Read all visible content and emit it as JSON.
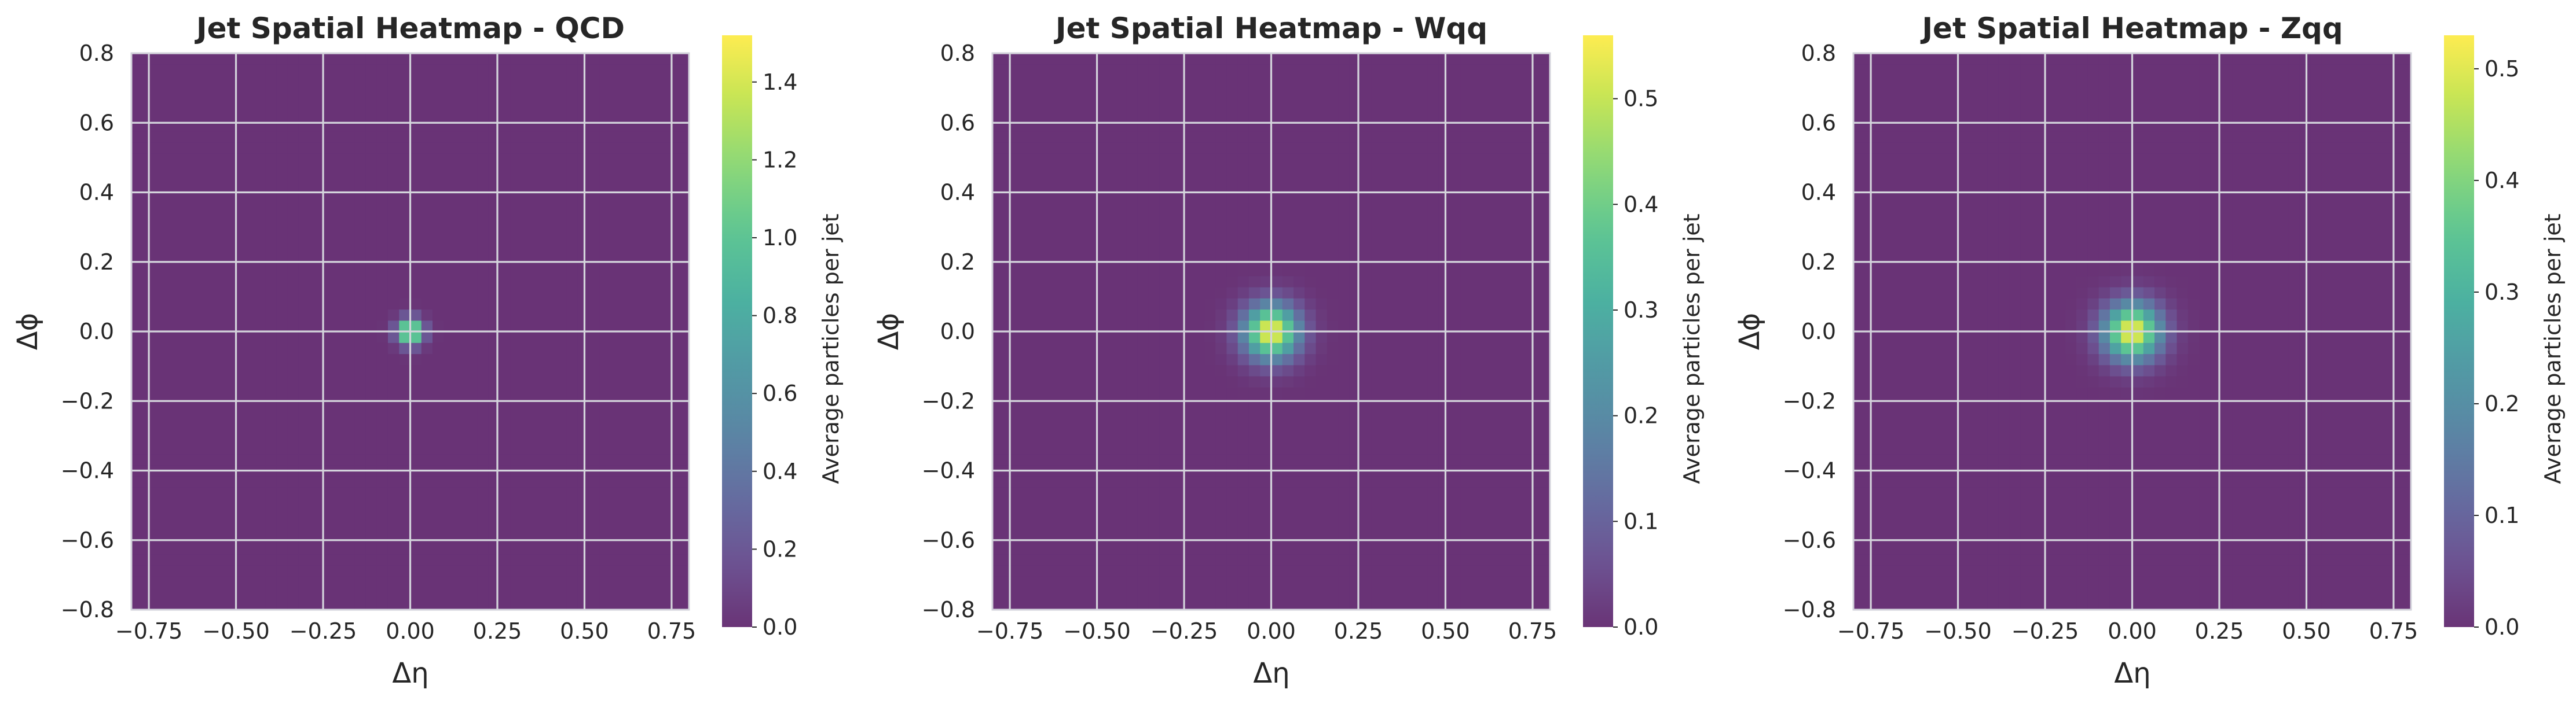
{
  "chart_data": [
    {
      "type": "heatmap",
      "title": "Jet Spatial Heatmap - QCD",
      "xlabel": "Δη",
      "ylabel": "Δϕ",
      "xlim": [
        -0.8,
        0.8
      ],
      "ylim": [
        -0.8,
        0.8
      ],
      "xticks": [
        -0.75,
        -0.5,
        -0.25,
        0.0,
        0.25,
        0.5,
        0.75
      ],
      "xtick_labels": [
        "−0.75",
        "−0.50",
        "−0.25",
        "0.00",
        "0.25",
        "0.50",
        "0.75"
      ],
      "yticks": [
        -0.8,
        -0.6,
        -0.4,
        -0.2,
        0.0,
        0.2,
        0.4,
        0.6,
        0.8
      ],
      "ytick_labels": [
        "−0.8",
        "−0.6",
        "−0.4",
        "−0.2",
        "0.0",
        "0.2",
        "0.4",
        "0.6",
        "0.8"
      ],
      "grid": true,
      "bins": 50,
      "colormap": "viridis",
      "alpha": 0.8,
      "peak_center": [
        0.0,
        0.0
      ],
      "peak_value": 1.5,
      "peak_width": 0.025,
      "colorbar": {
        "label": "Average particles per jet",
        "range": [
          0.0,
          1.52
        ],
        "ticks": [
          0.0,
          0.2,
          0.4,
          0.6,
          0.8,
          1.0,
          1.2,
          1.4
        ],
        "tick_labels": [
          "0.0",
          "0.2",
          "0.4",
          "0.6",
          "0.8",
          "1.0",
          "1.2",
          "1.4"
        ]
      }
    },
    {
      "type": "heatmap",
      "title": "Jet Spatial Heatmap - Wqq",
      "xlabel": "Δη",
      "ylabel": "Δϕ",
      "xlim": [
        -0.8,
        0.8
      ],
      "ylim": [
        -0.8,
        0.8
      ],
      "xticks": [
        -0.75,
        -0.5,
        -0.25,
        0.0,
        0.25,
        0.5,
        0.75
      ],
      "xtick_labels": [
        "−0.75",
        "−0.50",
        "−0.25",
        "0.00",
        "0.25",
        "0.50",
        "0.75"
      ],
      "yticks": [
        -0.8,
        -0.6,
        -0.4,
        -0.2,
        0.0,
        0.2,
        0.4,
        0.6,
        0.8
      ],
      "ytick_labels": [
        "−0.8",
        "−0.6",
        "−0.4",
        "−0.2",
        "0.0",
        "0.2",
        "0.4",
        "0.6",
        "0.8"
      ],
      "grid": true,
      "bins": 50,
      "colormap": "viridis",
      "alpha": 0.8,
      "peak_center": [
        0.0,
        0.0
      ],
      "peak_value": 0.55,
      "peak_width": 0.055,
      "colorbar": {
        "label": "Average particles per jet",
        "range": [
          0.0,
          0.56
        ],
        "ticks": [
          0.0,
          0.1,
          0.2,
          0.3,
          0.4,
          0.5
        ],
        "tick_labels": [
          "0.0",
          "0.1",
          "0.2",
          "0.3",
          "0.4",
          "0.5"
        ]
      }
    },
    {
      "type": "heatmap",
      "title": "Jet Spatial Heatmap - Zqq",
      "xlabel": "Δη",
      "ylabel": "Δϕ",
      "xlim": [
        -0.8,
        0.8
      ],
      "ylim": [
        -0.8,
        0.8
      ],
      "xticks": [
        -0.75,
        -0.5,
        -0.25,
        0.0,
        0.25,
        0.5,
        0.75
      ],
      "xtick_labels": [
        "−0.75",
        "−0.50",
        "−0.25",
        "0.00",
        "0.25",
        "0.50",
        "0.75"
      ],
      "yticks": [
        -0.8,
        -0.6,
        -0.4,
        -0.2,
        0.0,
        0.2,
        0.4,
        0.6,
        0.8
      ],
      "ytick_labels": [
        "−0.8",
        "−0.6",
        "−0.4",
        "−0.2",
        "0.0",
        "0.2",
        "0.4",
        "0.6",
        "0.8"
      ],
      "grid": true,
      "bins": 50,
      "colormap": "viridis",
      "alpha": 0.8,
      "peak_center": [
        0.0,
        0.0
      ],
      "peak_value": 0.52,
      "peak_width": 0.057,
      "colorbar": {
        "label": "Average particles per jet",
        "range": [
          0.0,
          0.53
        ],
        "ticks": [
          0.0,
          0.1,
          0.2,
          0.3,
          0.4,
          0.5
        ],
        "tick_labels": [
          "0.0",
          "0.1",
          "0.2",
          "0.3",
          "0.4",
          "0.5"
        ]
      }
    }
  ]
}
